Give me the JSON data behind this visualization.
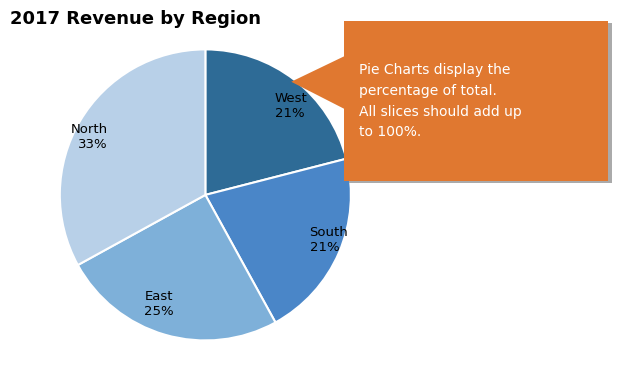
{
  "title": "2017 Revenue by Region",
  "slices": [
    {
      "label": "West",
      "pct": 21,
      "color": "#2E6B96"
    },
    {
      "label": "South",
      "pct": 21,
      "color": "#4A86C8"
    },
    {
      "label": "East",
      "pct": 25,
      "color": "#7EB0D9"
    },
    {
      "label": "North",
      "pct": 33,
      "color": "#B8D0E8"
    }
  ],
  "annotation_text": "Pie Charts display the\npercentage of total.\nAll slices should add up\nto 100%.",
  "annotation_bg": "#E07830",
  "annotation_text_color": "#FFFFFF",
  "background_color": "#FFFFFF",
  "title_fontsize": 13,
  "label_fontsize": 9.5,
  "startangle": 90
}
